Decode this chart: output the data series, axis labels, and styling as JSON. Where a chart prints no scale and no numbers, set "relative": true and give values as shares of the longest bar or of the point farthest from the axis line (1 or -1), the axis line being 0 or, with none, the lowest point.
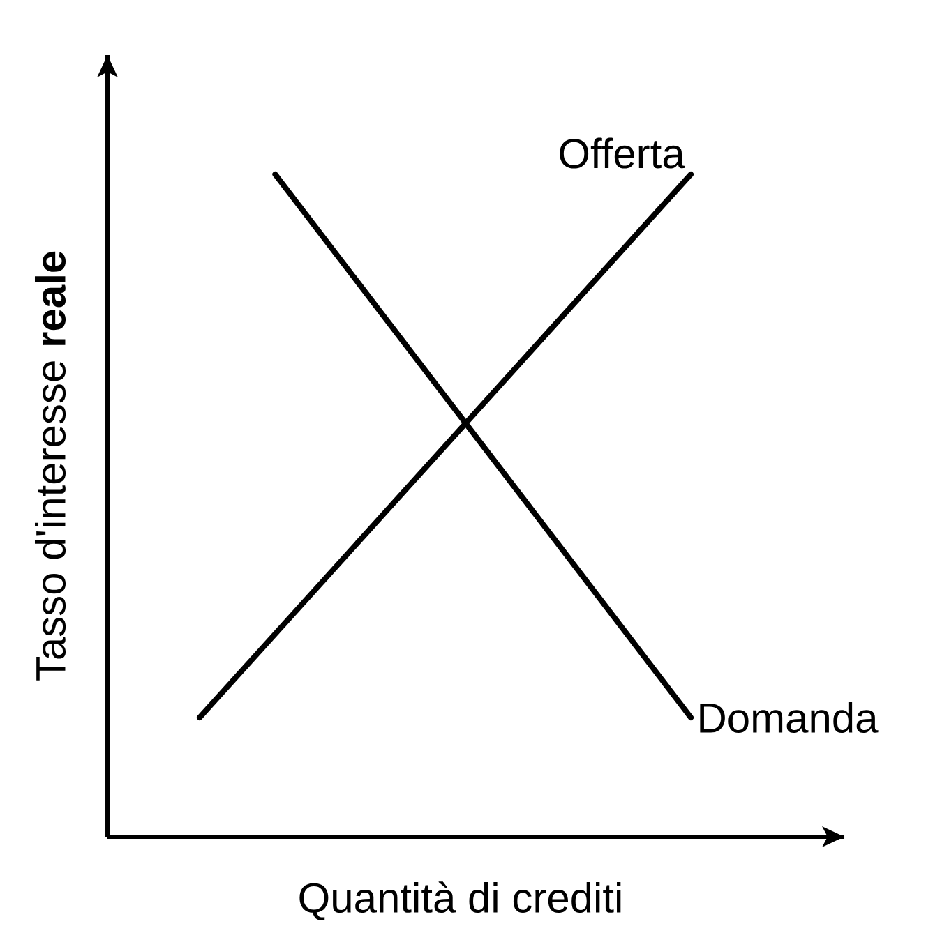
{
  "chart_data": {
    "type": "line",
    "relative": true,
    "xlabel": "Quantità di crediti",
    "ylabel": "Tasso d'interesse **reale**",
    "marker": "none",
    "line_style": "solid",
    "categories": [
      null,
      null,
      null,
      null,
      null,
      null,
      null,
      null,
      null,
      null,
      null,
      null,
      null,
      null
    ],
    "series": [
      {
        "name": "Offerta",
        "color": "#000000",
        "values": [
          0.18,
          null,
          null,
          null,
          null,
          null,
          null,
          null,
          null,
          null,
          null,
          null,
          null,
          1
        ]
      },
      {
        "name": "Domanda",
        "color": "#000000",
        "values": [
          null,
          null,
          1,
          null,
          null,
          null,
          null,
          null,
          null,
          null,
          null,
          null,
          null,
          0.18
        ]
      }
    ]
  }
}
